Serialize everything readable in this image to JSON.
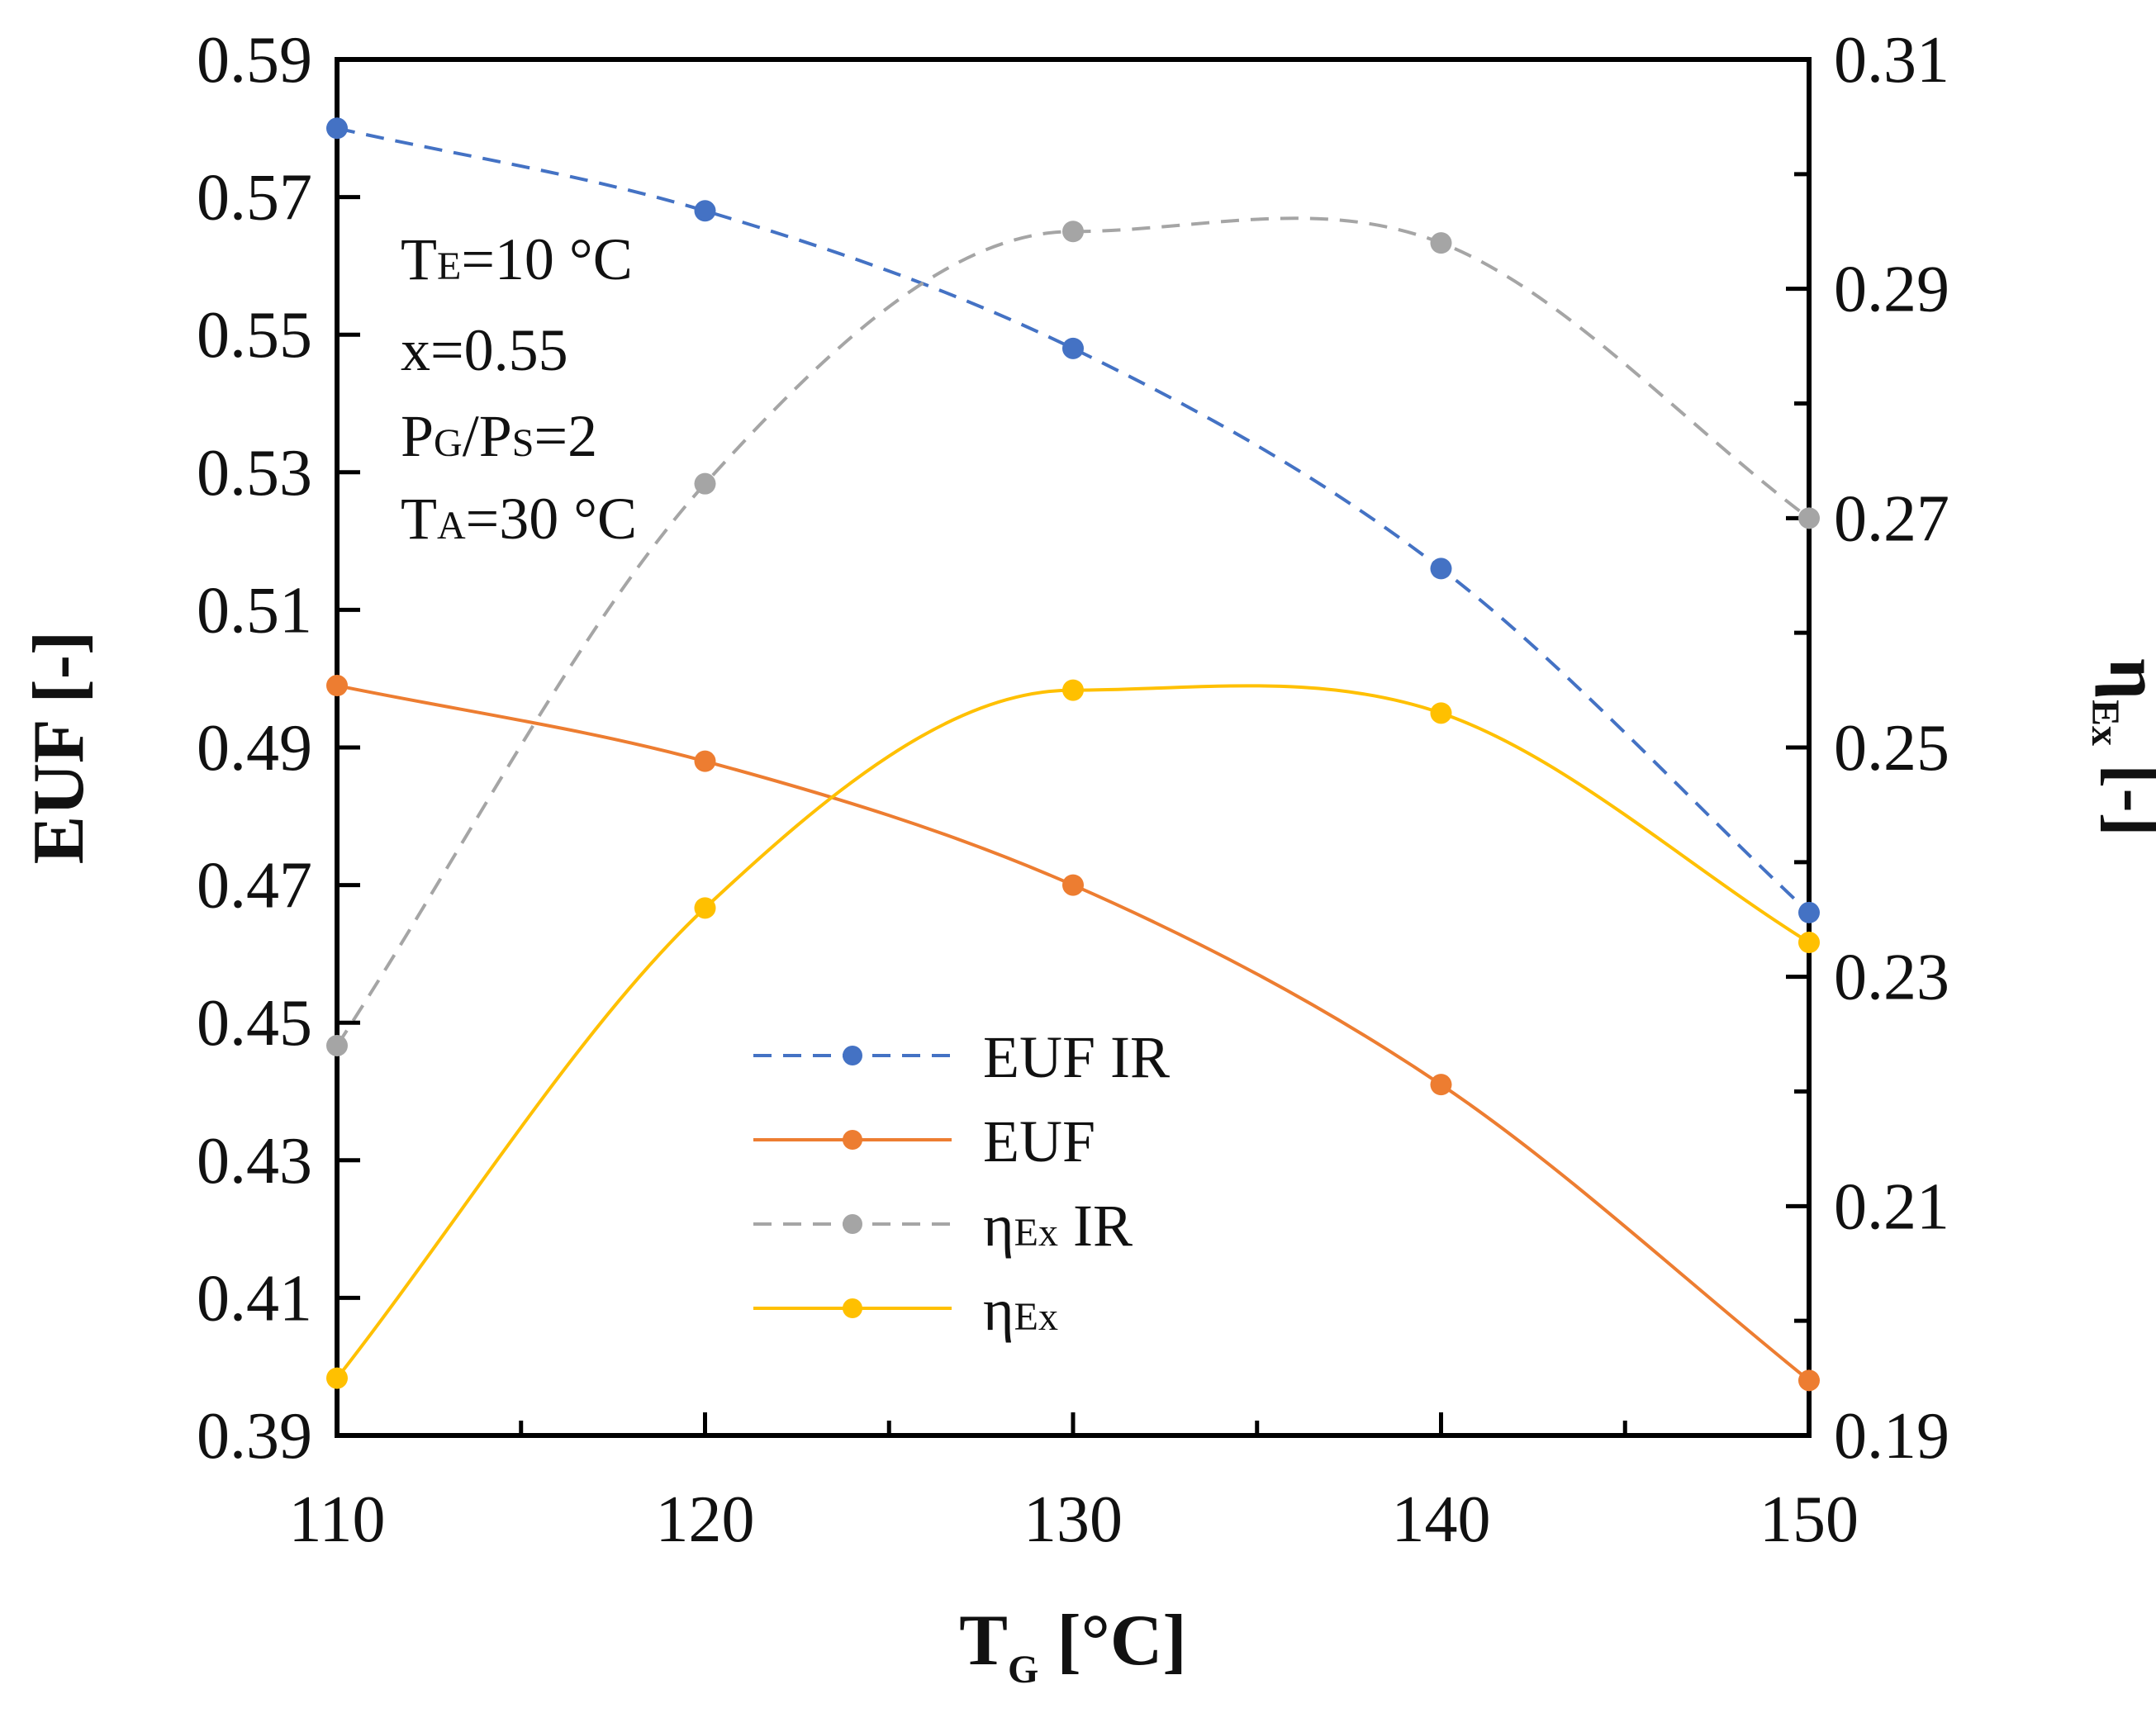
{
  "chart_data": {
    "type": "line",
    "xlabel": {
      "main": "T",
      "sub": "G",
      "unit": " [°C]"
    },
    "ylabel_left": "EUF [-]",
    "ylabel_right": {
      "main": "η",
      "sub": "Ex",
      "unit": " [-]"
    },
    "x": [
      110,
      120,
      130,
      140,
      150
    ],
    "xlim": [
      110,
      150
    ],
    "x_ticks": [
      "110",
      "120",
      "130",
      "140",
      "150"
    ],
    "ylim_left": [
      0.39,
      0.59
    ],
    "y_ticks_left": [
      "0.39",
      "0.41",
      "0.43",
      "0.45",
      "0.47",
      "0.49",
      "0.51",
      "0.53",
      "0.55",
      "0.57",
      "0.59"
    ],
    "ylim_right": [
      0.19,
      0.31
    ],
    "y_ticks_right": [
      "0.19",
      "0.21",
      "0.23",
      "0.25",
      "0.27",
      "0.29",
      "0.31"
    ],
    "series": [
      {
        "name": "EUF IR",
        "axis": "left",
        "style": "dashed",
        "color": "#4472C4",
        "values": [
          0.58,
          0.568,
          0.548,
          0.516,
          0.466
        ],
        "legend": {
          "main": "EUF IR",
          "sub": "",
          "suffix": ""
        }
      },
      {
        "name": "EUF",
        "axis": "left",
        "style": "solid",
        "color": "#ED7D31",
        "values": [
          0.499,
          0.488,
          0.47,
          0.441,
          0.398
        ],
        "legend": {
          "main": "EUF",
          "sub": "",
          "suffix": ""
        }
      },
      {
        "name": "ηEx IR",
        "axis": "right",
        "style": "dashed",
        "color": "#A5A5A5",
        "values": [
          0.224,
          0.273,
          0.295,
          0.294,
          0.27
        ],
        "legend": {
          "main": "η",
          "sub": "Ex",
          "suffix": " IR"
        }
      },
      {
        "name": "ηEx",
        "axis": "right",
        "style": "solid",
        "color": "#FFC000",
        "values": [
          0.195,
          0.236,
          0.255,
          0.253,
          0.233
        ],
        "legend": {
          "main": "η",
          "sub": "Ex",
          "suffix": ""
        }
      }
    ],
    "annotations": [
      {
        "main": "T",
        "sub": "E",
        "rest": "=10 °C"
      },
      {
        "main": "x=0.55",
        "sub": "",
        "rest": ""
      },
      {
        "main": "P",
        "sub": "G",
        "rest": "/P",
        "sub2": "S",
        "rest2": "=2"
      },
      {
        "main": "T",
        "sub": "A",
        "rest": "=30 °C"
      }
    ],
    "legend_position": "lower-center"
  }
}
